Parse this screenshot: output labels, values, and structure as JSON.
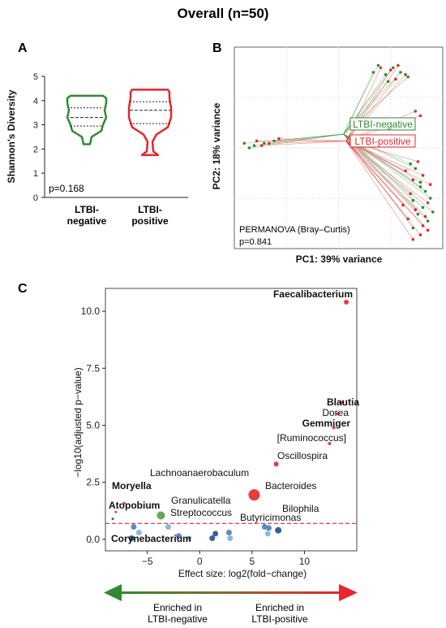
{
  "figure": {
    "title": "Overall (n=50)",
    "colors": {
      "negative": "#2e8b2e",
      "positive": "#e8262b",
      "sig_line": "#e8262b",
      "blue_dark": "#1f4e8c",
      "blue_light": "#7fb0d8"
    }
  },
  "chart_data": [
    {
      "id": "A",
      "panel_label": "A",
      "type": "violin",
      "ylabel": "Shannon's Diversity",
      "ylim": [
        0,
        5
      ],
      "yticks": [
        "0",
        "1",
        "2",
        "3",
        "4",
        "5"
      ],
      "categories": [
        "LTBI-\nnegative",
        "LTBI-\npositive"
      ],
      "category_lines": [
        [
          "LTBI-",
          "negative"
        ],
        [
          "LTBI-",
          "positive"
        ]
      ],
      "groups": [
        {
          "name": "LTBI-negative",
          "color": "#2e8b2e",
          "min": 2.2,
          "q1": 2.95,
          "median": 3.3,
          "q3": 3.7,
          "max": 4.2
        },
        {
          "name": "LTBI-positive",
          "color": "#e8262b",
          "min": 1.75,
          "q1": 3.05,
          "median": 3.6,
          "q3": 3.95,
          "max": 4.45
        }
      ],
      "annotation": "p=0.168"
    },
    {
      "id": "B",
      "panel_label": "B",
      "type": "scatter",
      "xlabel": "PC1: 39% variance",
      "ylabel": "PC2: 18% variance",
      "annotation_lines": [
        "PERMANOVA (Bray–Curtis)",
        "p=0.841"
      ],
      "centroids": [
        {
          "name": "LTBI-negative",
          "x": 0.02,
          "y": 0.04,
          "color": "#2e8b2e"
        },
        {
          "name": "LTBI-positive",
          "x": 0.03,
          "y": 0.01,
          "color": "#e8262b"
        }
      ],
      "series": [
        {
          "name": "LTBI-negative",
          "color": "#2e8b2e",
          "points": [
            [
              -0.38,
              0.0
            ],
            [
              -0.34,
              -0.01
            ],
            [
              -0.3,
              0.0
            ],
            [
              -0.26,
              0.01
            ],
            [
              -0.36,
              -0.02
            ],
            [
              0.14,
              0.31
            ],
            [
              0.16,
              0.34
            ],
            [
              0.19,
              0.3
            ],
            [
              0.22,
              0.33
            ],
            [
              0.25,
              0.31
            ],
            [
              0.28,
              0.29
            ],
            [
              0.2,
              0.27
            ],
            [
              0.29,
              -0.09
            ],
            [
              0.31,
              -0.11
            ],
            [
              0.33,
              -0.17
            ],
            [
              0.35,
              -0.21
            ],
            [
              0.3,
              -0.25
            ],
            [
              0.34,
              -0.28
            ],
            [
              0.37,
              -0.24
            ],
            [
              0.32,
              -0.31
            ],
            [
              0.36,
              -0.34
            ],
            [
              0.3,
              -0.37
            ],
            [
              0.33,
              -0.19
            ],
            [
              0.38,
              -0.3
            ]
          ]
        },
        {
          "name": "LTBI-positive",
          "color": "#e8262b",
          "points": [
            [
              -0.33,
              0.01
            ],
            [
              -0.28,
              0.0
            ],
            [
              -0.31,
              -0.01
            ],
            [
              -0.24,
              0.02
            ],
            [
              0.17,
              0.33
            ],
            [
              0.21,
              0.32
            ],
            [
              0.24,
              0.34
            ],
            [
              0.27,
              0.3
            ],
            [
              0.23,
              0.28
            ],
            [
              0.31,
              0.14
            ],
            [
              0.33,
              0.12
            ],
            [
              0.32,
              -0.08
            ],
            [
              0.34,
              -0.14
            ],
            [
              0.29,
              -0.22
            ],
            [
              0.36,
              -0.26
            ],
            [
              0.31,
              -0.29
            ],
            [
              0.35,
              -0.32
            ],
            [
              0.33,
              -0.4
            ],
            [
              0.28,
              -0.33
            ],
            [
              0.37,
              -0.18
            ],
            [
              0.3,
              -0.16
            ],
            [
              0.34,
              -0.36
            ],
            [
              0.26,
              -0.27
            ],
            [
              0.3,
              -0.42
            ],
            [
              0.36,
              -0.38
            ],
            [
              0.27,
              -0.12
            ]
          ]
        }
      ],
      "xlim": [
        -0.42,
        0.42
      ],
      "ylim": [
        -0.46,
        0.42
      ],
      "legend": [
        "LTBI-negative",
        "LTBI-positive"
      ]
    },
    {
      "id": "C",
      "panel_label": "C",
      "type": "scatter",
      "xlabel": "Effect size: log2(fold−change)",
      "ylabel": "−log10(adjusted p−value)",
      "xlim": [
        -9,
        15
      ],
      "ylim": [
        -0.5,
        11
      ],
      "xticks": [
        -5,
        0,
        5,
        10
      ],
      "xtick_labels": [
        "−5",
        "0",
        "5",
        "10"
      ],
      "yticks": [
        0,
        2.5,
        5,
        7.5,
        10
      ],
      "ytick_labels": [
        "0.0",
        "2.5",
        "5.0",
        "7.5",
        "10.0"
      ],
      "threshold": 0.7,
      "points": [
        {
          "label": "Faecalibacterium",
          "x": 14.0,
          "y": 10.4,
          "color": "#e8262b",
          "size": 3,
          "bold": true
        },
        {
          "label": "Blautia",
          "x": 13.5,
          "y": 6.0,
          "color": "#e8262b",
          "size": 2,
          "bold": true
        },
        {
          "label": "Dorea",
          "x": 13.2,
          "y": 5.5,
          "color": "#e8262b",
          "size": 2,
          "bold": false
        },
        {
          "label": "Gemmiger",
          "x": 12.8,
          "y": 4.9,
          "color": "#e8262b",
          "size": 2,
          "bold": true
        },
        {
          "label": "[Ruminococcus]",
          "x": 12.4,
          "y": 4.2,
          "color": "#e8262b",
          "size": 2,
          "bold": false
        },
        {
          "label": "Oscillospira",
          "x": 7.3,
          "y": 3.3,
          "color": "#e8262b",
          "size": 3,
          "bold": false
        },
        {
          "label": "Lachnoanaerobaculum",
          "x": -7.2,
          "y": 1.6,
          "color": "#e8262b",
          "size": 1.5,
          "bold": false
        },
        {
          "label": "Bacteroides",
          "x": 5.2,
          "y": 1.95,
          "color": "#e8262b",
          "size": 7,
          "bold": false
        },
        {
          "label": "Moryella",
          "x": -8.0,
          "y": 1.2,
          "color": "#e8262b",
          "size": 1.5,
          "bold": true
        },
        {
          "label": "Granulicatella",
          "x": -3.7,
          "y": 1.05,
          "color": "#5a9e4a",
          "size": 5,
          "bold": false
        },
        {
          "label": "Atopobium",
          "x": -8.3,
          "y": 0.9,
          "color": "#1f4e8c",
          "size": 1.5,
          "bold": true
        },
        {
          "label": "Streptococcus",
          "x": -3.0,
          "y": 0.55,
          "color": "#7fb0d8",
          "size": 3.5,
          "bold": false
        },
        {
          "label": "Bilophila",
          "x": 7.5,
          "y": 0.4,
          "color": "#1f4e8c",
          "size": 4,
          "bold": false
        },
        {
          "label": "Butyricimonas",
          "x": 6.6,
          "y": 0.5,
          "color": "#4a7fb5",
          "size": 3.5,
          "bold": false
        },
        {
          "label": "Corynebacterium",
          "x": -6.5,
          "y": 0.05,
          "color": "#1f4e8c",
          "size": 3.5,
          "bold": true
        },
        {
          "label": "",
          "x": -6.3,
          "y": 0.55,
          "color": "#4a7fb5",
          "size": 3.5
        },
        {
          "label": "",
          "x": -5.8,
          "y": 0.3,
          "color": "#7fb0d8",
          "size": 3.5
        },
        {
          "label": "",
          "x": -2.0,
          "y": 0.15,
          "color": "#4a7fb5",
          "size": 3.5
        },
        {
          "label": "",
          "x": -1.0,
          "y": 0.05,
          "color": "#7fb0d8",
          "size": 3
        },
        {
          "label": "",
          "x": 1.2,
          "y": 0.05,
          "color": "#1f4e8c",
          "size": 3.5
        },
        {
          "label": "",
          "x": 1.5,
          "y": 0.25,
          "color": "#1f4e8c",
          "size": 3.5
        },
        {
          "label": "",
          "x": 2.8,
          "y": 0.3,
          "color": "#4a7fb5",
          "size": 3.5
        },
        {
          "label": "",
          "x": 2.9,
          "y": 0.05,
          "color": "#7fb0d8",
          "size": 3.5
        },
        {
          "label": "",
          "x": 6.2,
          "y": 0.55,
          "color": "#4a7fb5",
          "size": 3.5
        },
        {
          "label": "",
          "x": 6.5,
          "y": 0.25,
          "color": "#7fb0d8",
          "size": 3.5
        }
      ],
      "arrow_labels": {
        "left": [
          "Enriched in",
          "LTBI-negative"
        ],
        "right": [
          "Enriched in",
          "LTBI-positive"
        ]
      }
    }
  ]
}
